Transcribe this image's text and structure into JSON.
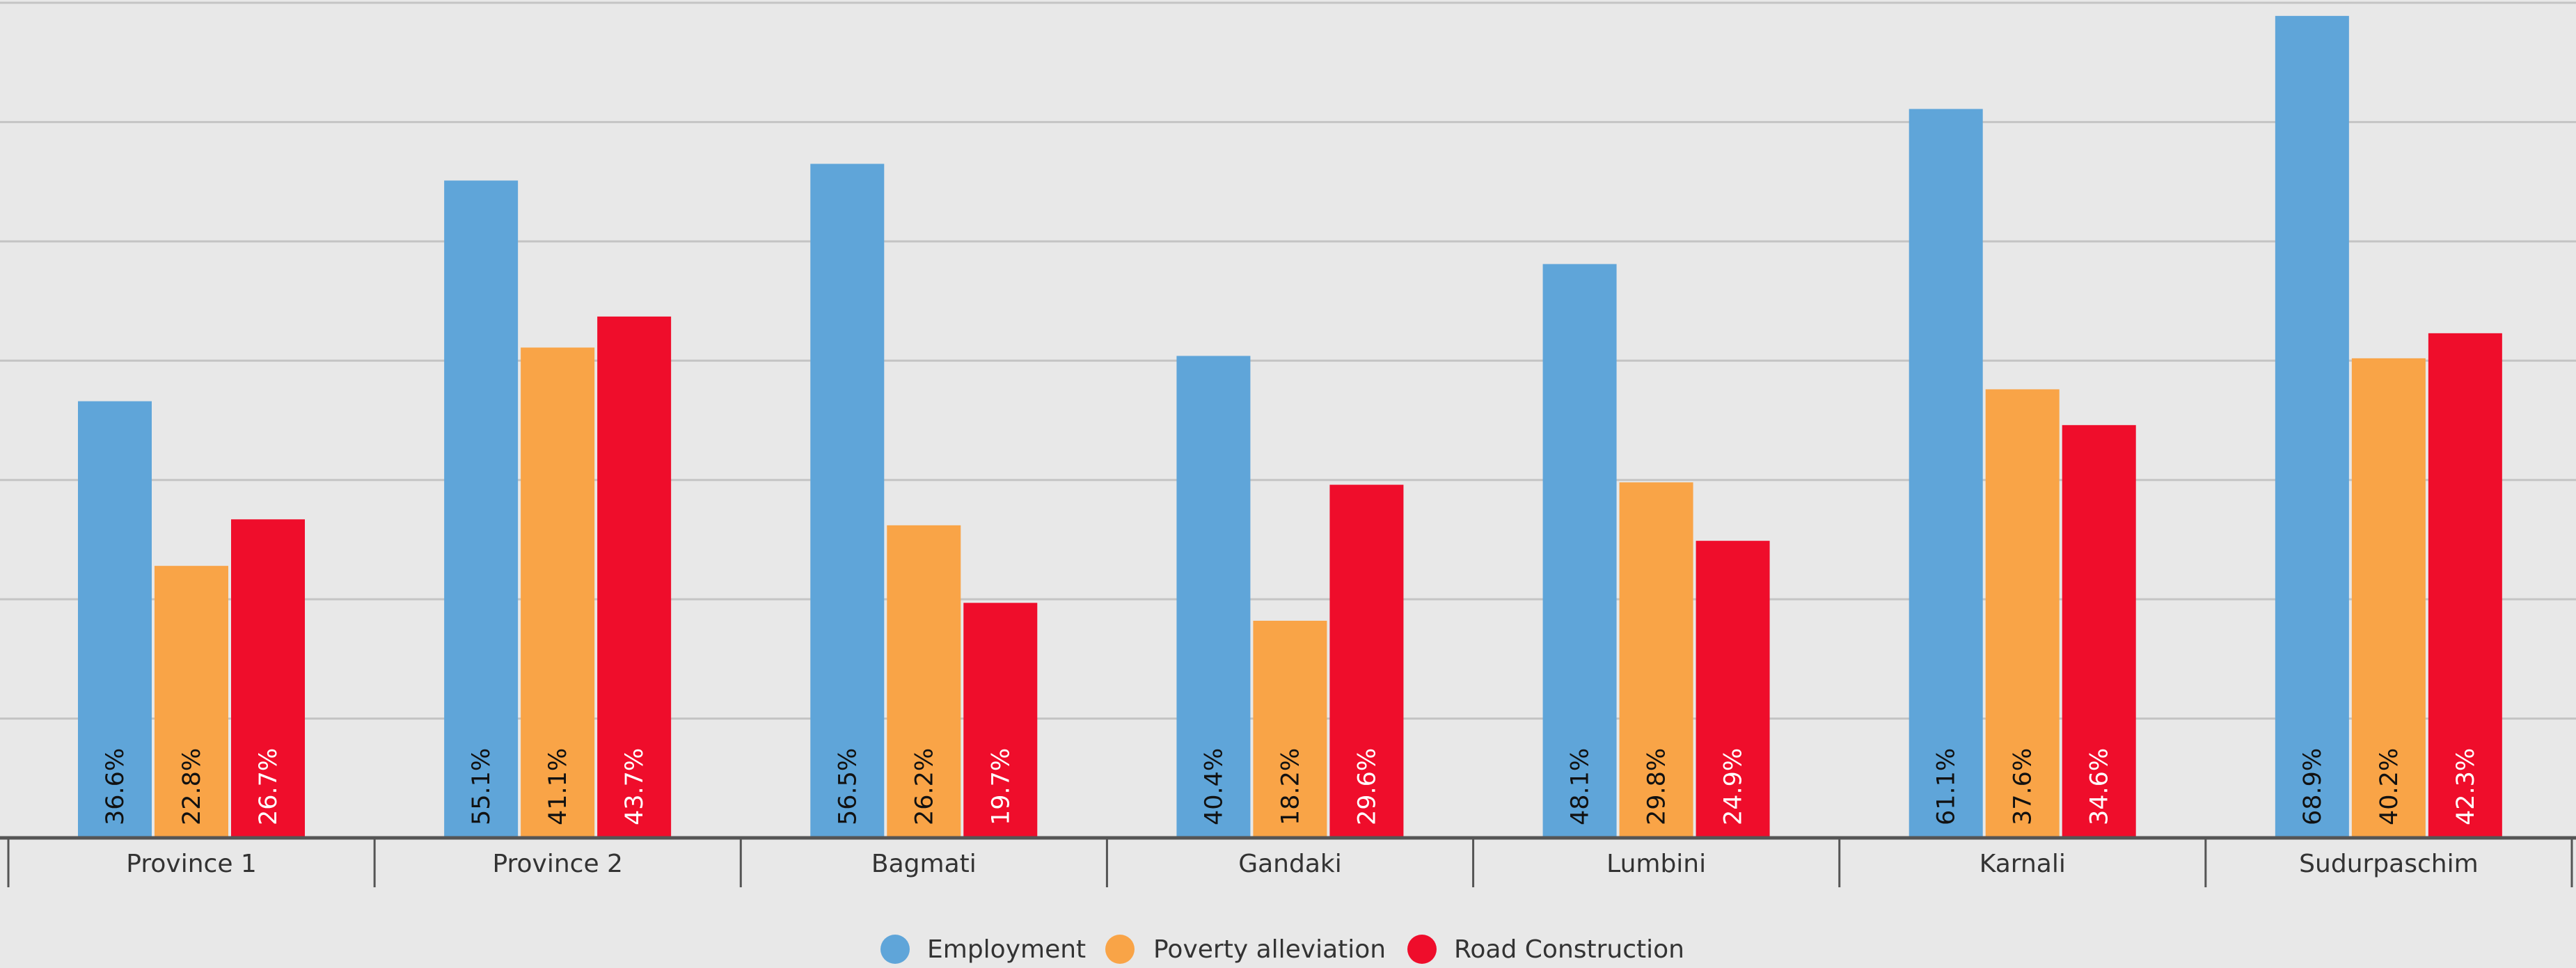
{
  "chart_data": {
    "type": "bar",
    "categories": [
      "Province 1",
      "Province 2",
      "Bagmati",
      "Gandaki",
      "Lumbini",
      "Karnali",
      "Sudurpaschim"
    ],
    "series": [
      {
        "name": "Employment",
        "color": "#5fa5d9",
        "label_color": "#111111",
        "values": [
          36.6,
          55.1,
          56.5,
          40.4,
          48.1,
          61.1,
          68.9
        ],
        "labels": [
          "36.6%",
          "55.1%",
          "56.5%",
          "40.4%",
          "48.1%",
          "61.1%",
          "68.9%"
        ]
      },
      {
        "name": "Poverty alleviation",
        "color": "#f9a447",
        "label_color": "#111111",
        "values": [
          22.8,
          41.1,
          26.2,
          18.2,
          29.8,
          37.6,
          40.2
        ],
        "labels": [
          "22.8%",
          "41.1%",
          "26.2%",
          "18.2%",
          "29.8%",
          "37.6%",
          "40.2%"
        ]
      },
      {
        "name": "Road Construction",
        "color": "#ef0d2b",
        "label_color": "#ffffff",
        "values": [
          26.7,
          43.7,
          19.7,
          29.6,
          24.9,
          34.6,
          42.3
        ],
        "labels": [
          "26.7%",
          "43.7%",
          "19.7%",
          "29.6%",
          "24.9%",
          "34.6%",
          "42.3%"
        ]
      }
    ],
    "ylim": [
      0,
      70
    ],
    "grid": true,
    "legend": "bottom-center"
  }
}
